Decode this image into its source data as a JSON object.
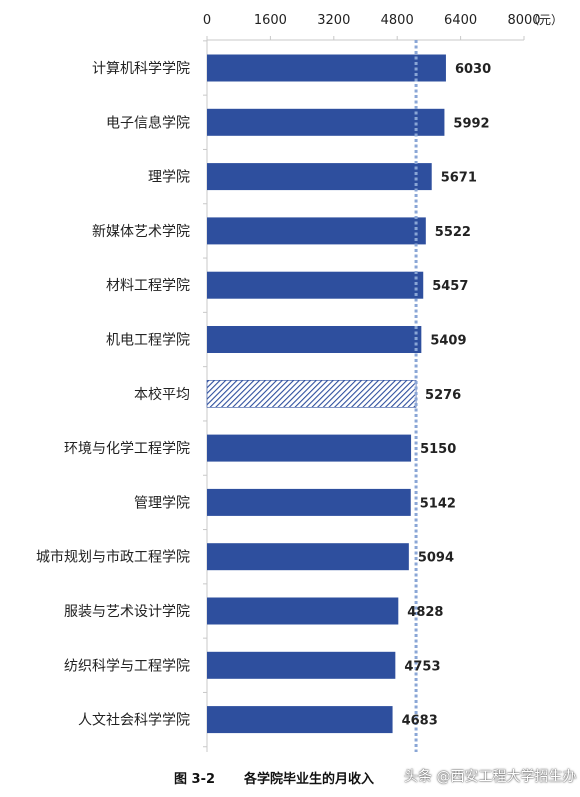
{
  "chart_data": {
    "type": "bar",
    "orientation": "horizontal",
    "categories": [
      "计算机科学学院",
      "电子信息学院",
      "理学院",
      "新媒体艺术学院",
      "材料工程学院",
      "机电工程学院",
      "本校平均",
      "环境与化学工程学院",
      "管理学院",
      "城市规划与市政工程学院",
      "服装与艺术设计学院",
      "纺织科学与工程学院",
      "人文社会科学学院"
    ],
    "values": [
      6030,
      5992,
      5671,
      5522,
      5457,
      5409,
      5276,
      5150,
      5142,
      5094,
      4828,
      4753,
      4683
    ],
    "highlight_category": "本校平均",
    "reference_line": 5276,
    "xlim": [
      0,
      8000
    ],
    "xticks": [
      "0",
      "1600",
      "3200",
      "4800",
      "6400",
      "8000"
    ],
    "x_unit": "（元）",
    "axis_position": "top",
    "grid": false,
    "legend": "none",
    "colors": {
      "bar": "#2e4f9e",
      "reference": "#8aa6d6",
      "axis": "#c8c8c8"
    }
  },
  "caption": {
    "number": "图 3-2",
    "title": "各学院毕业生的月收入"
  },
  "watermark": "头条 @西安工程大学招生办"
}
